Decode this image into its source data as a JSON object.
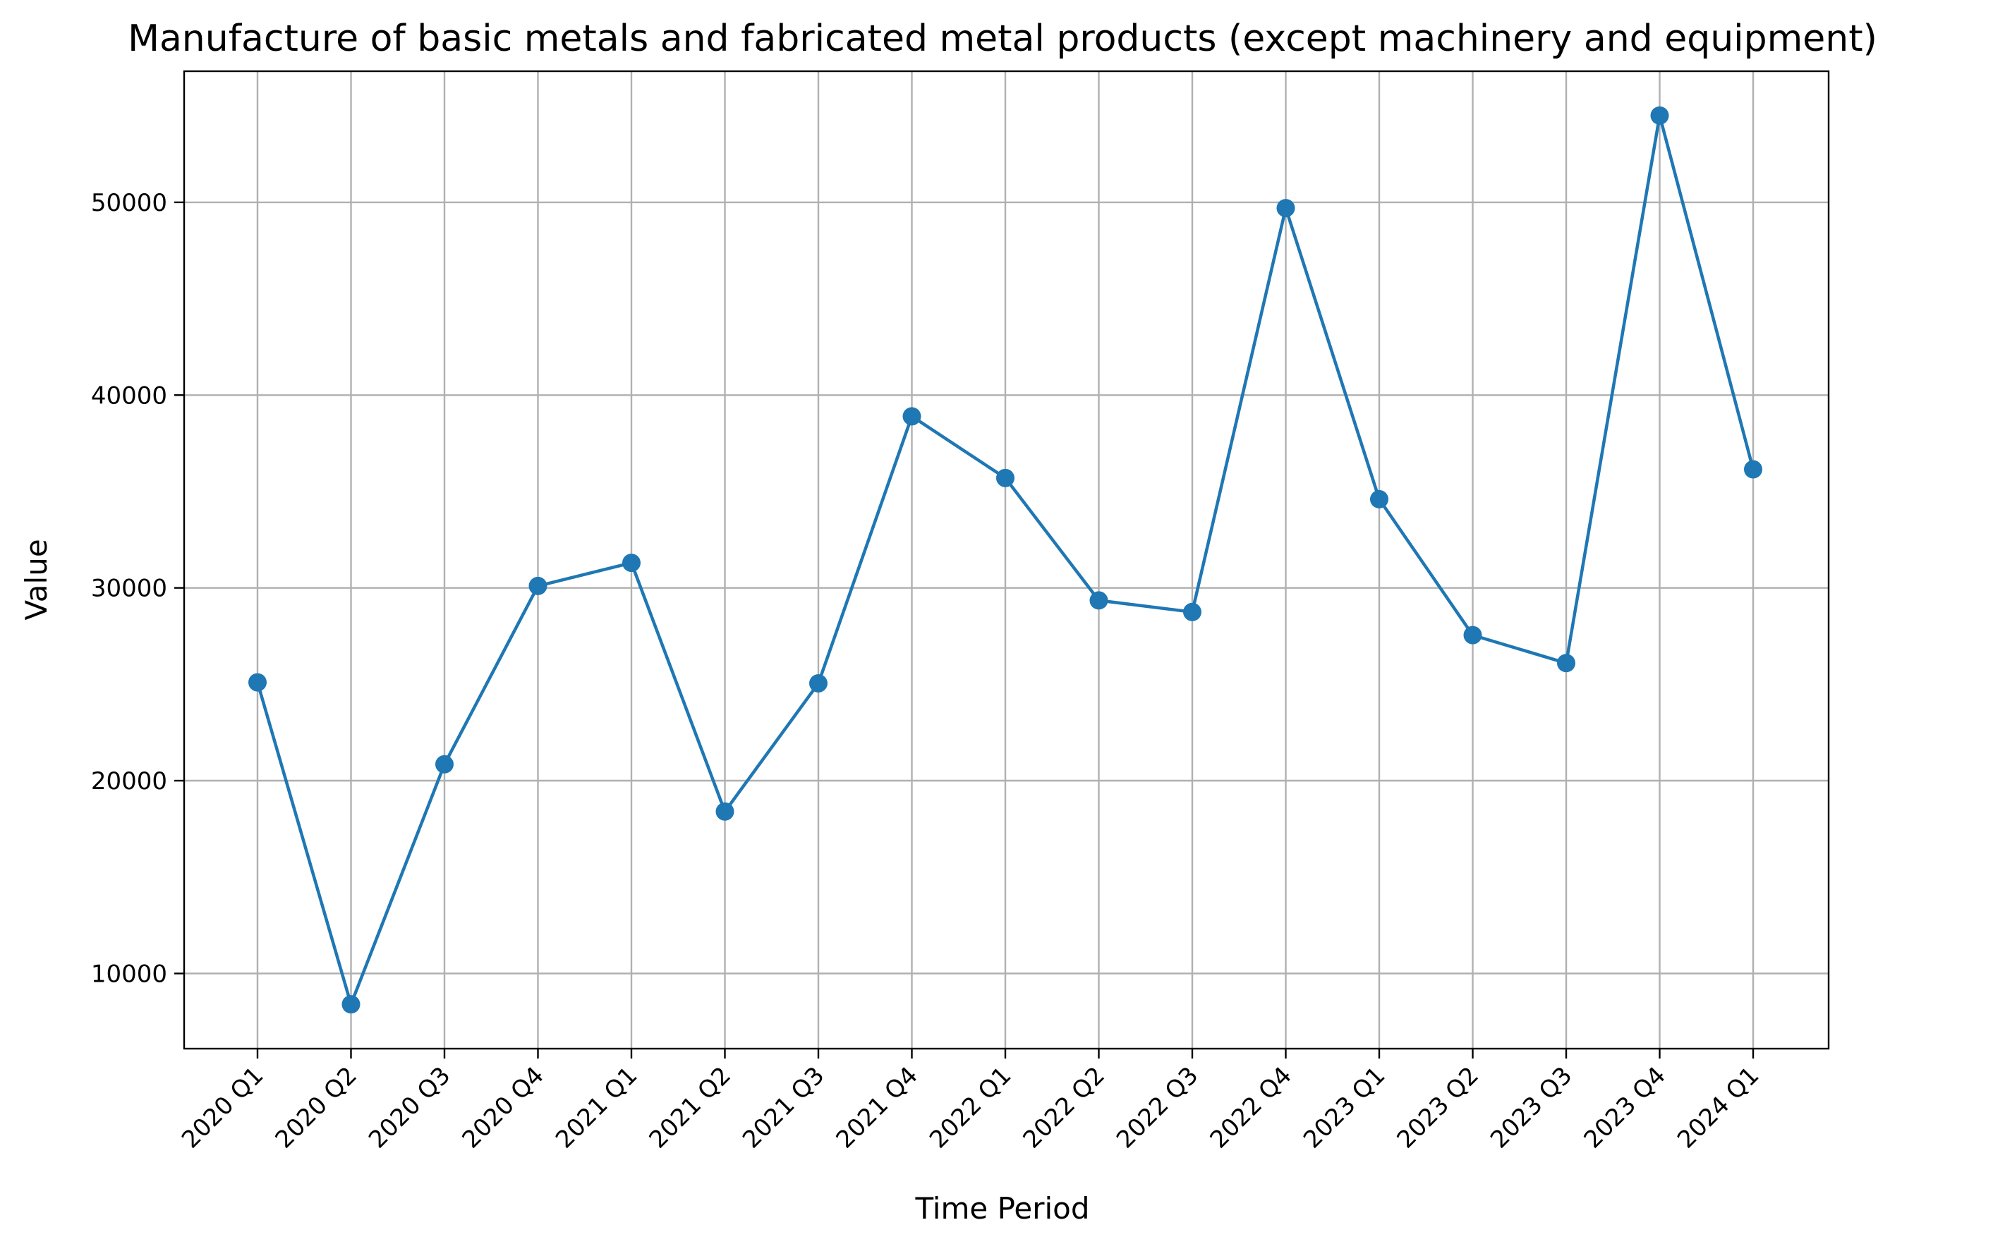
{
  "chart_data": {
    "type": "line",
    "title": "Manufacture of basic metals and fabricated metal products (except machinery and equipment)",
    "xlabel": "Time Period",
    "ylabel": "Value",
    "categories": [
      "2020 Q1",
      "2020 Q2",
      "2020 Q3",
      "2020 Q4",
      "2021 Q1",
      "2021 Q2",
      "2021 Q3",
      "2021 Q4",
      "2022 Q1",
      "2022 Q2",
      "2022 Q3",
      "2022 Q4",
      "2023 Q1",
      "2023 Q2",
      "2023 Q3",
      "2023 Q4",
      "2024 Q1"
    ],
    "series": [
      {
        "values": [
          25100,
          8400,
          20850,
          30100,
          31300,
          18400,
          25050,
          38900,
          35700,
          29350,
          28750,
          49700,
          34600,
          27550,
          26100,
          54500,
          36150
        ],
        "color": "#1f77b4",
        "marker": "circle"
      }
    ],
    "yticks": [
      10000,
      20000,
      30000,
      40000,
      50000
    ],
    "ylim": [
      6100,
      56800
    ],
    "grid": true,
    "legend": "none"
  }
}
